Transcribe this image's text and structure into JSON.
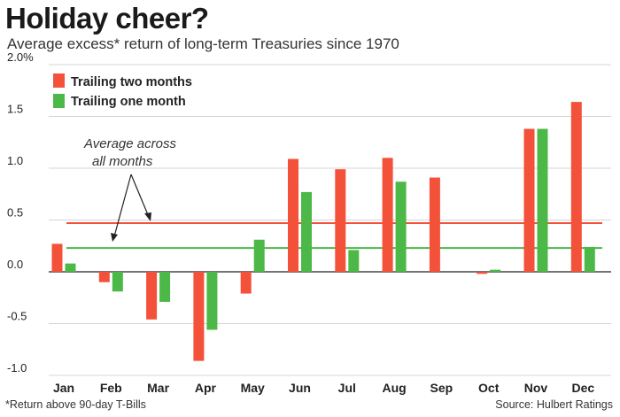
{
  "header": {
    "title": "Holiday cheer?",
    "subtitle": "Average excess* return of long-term Treasuries since 1970"
  },
  "footer": {
    "footnote": "*Return above 90-day T-Bills",
    "source": "Source: Hulbert Ratings"
  },
  "colors": {
    "series_two_months": "#f4513a",
    "series_one_month": "#4cb848",
    "grid": "#d4d4d4",
    "zero_line": "#222222"
  },
  "chart_data": {
    "type": "bar",
    "title": "Holiday cheer?",
    "subtitle": "Average excess* return of long-term Treasuries since 1970",
    "xlabel": "",
    "ylabel": "",
    "categories": [
      "Jan",
      "Feb",
      "Mar",
      "Apr",
      "May",
      "Jun",
      "Jul",
      "Aug",
      "Sep",
      "Oct",
      "Nov",
      "Dec"
    ],
    "series": [
      {
        "name": "Trailing two months",
        "color": "#f4513a",
        "values": [
          0.27,
          -0.1,
          -0.46,
          -0.86,
          -0.21,
          1.09,
          0.99,
          1.1,
          0.91,
          -0.02,
          1.38,
          1.64
        ]
      },
      {
        "name": "Trailing one month",
        "color": "#4cb848",
        "values": [
          0.08,
          -0.19,
          -0.29,
          -0.56,
          0.31,
          0.77,
          0.21,
          0.87,
          0.0,
          0.02,
          1.38,
          0.24
        ]
      }
    ],
    "averages": [
      {
        "series": "Trailing two months",
        "value": 0.47
      },
      {
        "series": "Trailing one month",
        "value": 0.23
      }
    ],
    "ylim": [
      -1.0,
      2.0
    ],
    "yticks": [
      2.0,
      1.5,
      1.0,
      0.5,
      0.0,
      -0.5,
      -1.0
    ],
    "ytick_labels": [
      "2.0%",
      "1.5",
      "1.0",
      "0.5",
      "0.0",
      "-0.5",
      "-1.0"
    ],
    "grid": true,
    "legend_position": "top-left",
    "annotation": {
      "line1": "Average across",
      "line2": "all months"
    }
  }
}
